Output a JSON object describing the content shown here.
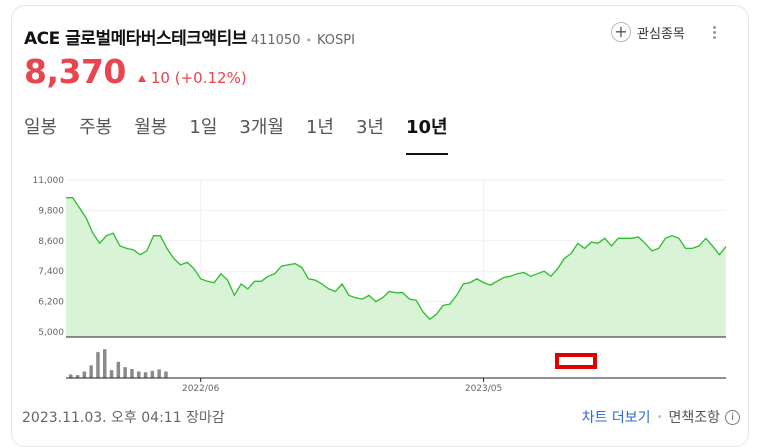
{
  "stock": {
    "name": "ACE 글로벌메타버스테크액티브",
    "code": "411050",
    "market": "KOSPI",
    "price": "8,370",
    "change": "10",
    "change_pct": "(+0.12%)",
    "watch_label": "관심종목"
  },
  "tabs": [
    {
      "label": "일봉",
      "active": false
    },
    {
      "label": "주봉",
      "active": false
    },
    {
      "label": "월봉",
      "active": false
    },
    {
      "label": "1일",
      "active": false
    },
    {
      "label": "3개월",
      "active": false
    },
    {
      "label": "1년",
      "active": false
    },
    {
      "label": "3년",
      "active": false
    },
    {
      "label": "10년",
      "active": true
    }
  ],
  "footer": {
    "timestamp": "2023.11.03. 오후 04:11 장마감",
    "more_chart": "차트 더보기",
    "disclaimer": "면책조항",
    "info_icon": "i"
  },
  "colors": {
    "up": "#e8454f",
    "line": "#2dbd2d",
    "area": "#d8f3d5",
    "volume": "#8a8a8a",
    "highlight": "#e00000"
  },
  "chart_data": {
    "type": "area",
    "y_ticks": [
      "11,000",
      "9,800",
      "8,600",
      "7,400",
      "6,200",
      "5,000"
    ],
    "ylim": [
      5000,
      11000
    ],
    "x_ticks": [
      {
        "label": "2022/06",
        "index": 20
      },
      {
        "label": "2023/05",
        "index": 62
      }
    ],
    "series": [
      {
        "values": [
          10300,
          10300,
          9900,
          9500,
          8900,
          8500,
          8800,
          8900,
          8400,
          8300,
          8250,
          8050,
          8200,
          8800,
          8800,
          8300,
          7900,
          7650,
          7750,
          7500,
          7100,
          7000,
          6950,
          7300,
          7050,
          6450,
          6900,
          6700,
          7000,
          7000,
          7200,
          7300,
          7600,
          7650,
          7700,
          7550,
          7100,
          7050,
          6900,
          6700,
          6600,
          6900,
          6450,
          6350,
          6300,
          6450,
          6200,
          6350,
          6600,
          6550,
          6550,
          6300,
          6250,
          5800,
          5500,
          5700,
          6050,
          6100,
          6450,
          6900,
          6950,
          7100,
          6950,
          6850,
          7000,
          7150,
          7200,
          7300,
          7350,
          7200,
          7300,
          7400,
          7200,
          7500,
          7900,
          8100,
          8500,
          8300,
          8550,
          8500,
          8700,
          8400,
          8700,
          8700,
          8700,
          8750,
          8500,
          8200,
          8300,
          8700,
          8800,
          8700,
          8300,
          8300,
          8400,
          8700,
          8400,
          8050,
          8370
        ]
      }
    ],
    "volume": [
      0.1,
      0.08,
      0.18,
      0.35,
      0.72,
      0.8,
      0.22,
      0.45,
      0.3,
      0.25,
      0.18,
      0.16,
      0.2,
      0.24,
      0.18
    ]
  }
}
